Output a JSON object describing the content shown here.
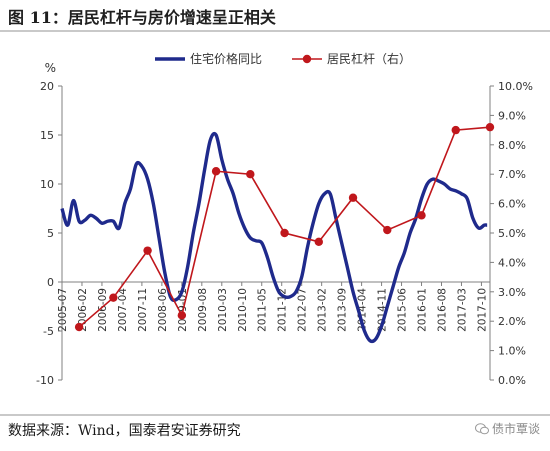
{
  "figure_title": "图 11：居民杠杆与房价增速呈正相关",
  "source": "数据来源：Wind，国泰君安证券研究",
  "watermark": "债市覃谈",
  "watermark_icon": "wechat-icon",
  "colors": {
    "price": "#1f2a8c",
    "leverage": "#c0171c",
    "axis": "#808080",
    "text": "#333333"
  },
  "chart_data": {
    "type": "line",
    "title": "",
    "ylabel_left": "%",
    "ylim_left": [
      -10,
      20
    ],
    "yticks_left": [
      -10,
      -5,
      0,
      5,
      10,
      15,
      20
    ],
    "ylim_right": [
      0,
      10
    ],
    "yticks_right": [
      "0.0%",
      "1.0%",
      "2.0%",
      "3.0%",
      "4.0%",
      "5.0%",
      "6.0%",
      "7.0%",
      "8.0%",
      "9.0%",
      "10.0%"
    ],
    "x_range": [
      "2005-07",
      "2018-01"
    ],
    "x_ticks": [
      "2005-07",
      "2006-02",
      "2006-09",
      "2007-04",
      "2007-11",
      "2008-06",
      "2009-01",
      "2009-08",
      "2010-03",
      "2010-10",
      "2011-05",
      "2011-12",
      "2012-07",
      "2013-02",
      "2013-09",
      "2014-04",
      "2014-11",
      "2015-06",
      "2016-01",
      "2016-08",
      "2017-03",
      "2017-10"
    ],
    "legend_position": "top",
    "series": [
      {
        "name": "住宅价格同比",
        "axis": "left",
        "style": "line",
        "x": [
          "2005-07",
          "2005-09",
          "2005-11",
          "2006-01",
          "2006-03",
          "2006-05",
          "2006-07",
          "2006-09",
          "2006-11",
          "2007-01",
          "2007-03",
          "2007-05",
          "2007-07",
          "2007-09",
          "2007-11",
          "2008-01",
          "2008-03",
          "2008-05",
          "2008-07",
          "2008-09",
          "2008-11",
          "2009-01",
          "2009-03",
          "2009-05",
          "2009-07",
          "2009-09",
          "2009-11",
          "2010-01",
          "2010-03",
          "2010-05",
          "2010-07",
          "2010-09",
          "2010-11",
          "2011-01",
          "2011-03",
          "2011-05",
          "2011-07",
          "2011-09",
          "2011-11",
          "2012-01",
          "2012-03",
          "2012-05",
          "2012-07",
          "2012-09",
          "2012-11",
          "2013-01",
          "2013-03",
          "2013-05",
          "2013-07",
          "2013-09",
          "2013-11",
          "2014-01",
          "2014-03",
          "2014-05",
          "2014-07",
          "2014-09",
          "2014-11",
          "2015-01",
          "2015-03",
          "2015-05",
          "2015-07",
          "2015-09",
          "2015-11",
          "2016-01",
          "2016-03",
          "2016-05",
          "2016-07",
          "2016-09",
          "2016-11",
          "2017-01",
          "2017-03",
          "2017-05",
          "2017-07",
          "2017-09",
          "2017-11",
          "2017-12"
        ],
        "values": [
          7.5,
          5.8,
          8.3,
          6.2,
          6.3,
          6.8,
          6.5,
          6.0,
          6.2,
          6.2,
          5.5,
          8.0,
          9.5,
          12.0,
          11.8,
          10.5,
          8.0,
          4.5,
          1.0,
          -1.5,
          -1.8,
          -1.0,
          1.5,
          5.0,
          8.0,
          11.5,
          14.5,
          15.0,
          12.5,
          10.5,
          9.0,
          7.0,
          5.5,
          4.5,
          4.2,
          4.0,
          2.5,
          0.5,
          -1.0,
          -1.5,
          -1.5,
          -1.0,
          0.5,
          3.5,
          6.0,
          8.0,
          9.0,
          9.0,
          6.5,
          4.0,
          1.5,
          -1.0,
          -3.0,
          -5.0,
          -6.0,
          -5.8,
          -4.5,
          -2.5,
          -0.5,
          1.5,
          3.0,
          5.0,
          6.5,
          8.5,
          10.0,
          10.5,
          10.3,
          10.0,
          9.5,
          9.3,
          9.0,
          8.5,
          6.5,
          5.5,
          5.8,
          5.8
        ]
      },
      {
        "name": "居民杠杆（右）",
        "axis": "right",
        "style": "line-markers",
        "x": [
          "2006-01",
          "2007-01",
          "2008-01",
          "2009-01",
          "2010-01",
          "2011-01",
          "2012-01",
          "2013-01",
          "2014-01",
          "2015-01",
          "2016-01",
          "2017-01",
          "2018-01"
        ],
        "values": [
          1.8,
          2.8,
          4.4,
          2.2,
          7.1,
          7.0,
          5.0,
          4.7,
          6.2,
          5.1,
          5.6,
          8.5,
          8.6
        ]
      }
    ]
  }
}
